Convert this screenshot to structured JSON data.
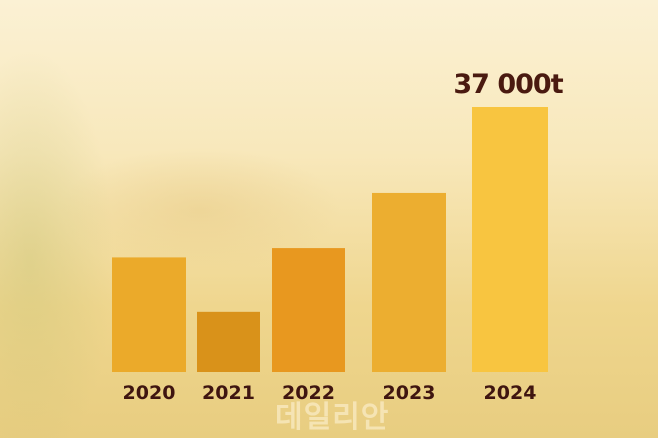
{
  "chart_data": {
    "type": "bar",
    "categories": [
      "2020",
      "2021",
      "2022",
      "2023",
      "2024"
    ],
    "values": [
      16000,
      8400,
      17300,
      25000,
      37000
    ],
    "data_labels": [
      "",
      "",
      "",
      "",
      "37 000t"
    ],
    "colors": [
      "#EBAA2A",
      "#D9921A",
      "#E8981F",
      "#ECAE30",
      "#F8C540"
    ],
    "ylim": [
      0,
      37000
    ],
    "grid": false,
    "title": "",
    "xlabel": "",
    "ylabel": ""
  },
  "watermark": "데일리안"
}
